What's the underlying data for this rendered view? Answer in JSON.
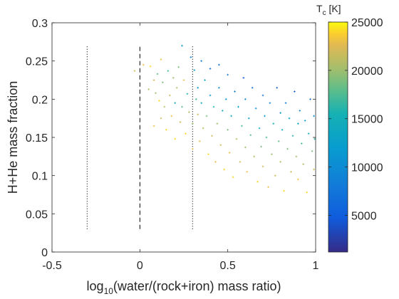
{
  "chart_data": {
    "type": "scatter",
    "xlabel": "log10(water/(rock+iron) mass ratio)",
    "ylabel": "H+He mass fraction",
    "colorbar_title": "Tc [K]",
    "xlim": [
      -0.5,
      1
    ],
    "ylim": [
      0,
      0.3
    ],
    "xticks": [
      -0.5,
      0,
      0.5,
      1
    ],
    "xtick_labels": [
      "-0.5",
      "0",
      "0.5",
      "1"
    ],
    "yticks": [
      0,
      0.05,
      0.1,
      0.15,
      0.2,
      0.25,
      0.3
    ],
    "ytick_labels": [
      "0",
      "0.05",
      "0.1",
      "0.15",
      "0.2",
      "0.25",
      "0.3"
    ],
    "clim": [
      1200,
      25000
    ],
    "cticks": [
      5000,
      10000,
      15000,
      20000,
      25000
    ],
    "ctick_labels": [
      "5000",
      "10000",
      "15000",
      "20000",
      "25000"
    ],
    "colormap": "parula",
    "grid": false,
    "reference_lines": [
      {
        "x": -0.3,
        "y_range": [
          0.03,
          0.27
        ],
        "style": "dotted"
      },
      {
        "x": 0.0,
        "y_range": [
          0.03,
          0.27
        ],
        "style": "dashed"
      },
      {
        "x": 0.3,
        "y_range": [
          0.03,
          0.27
        ],
        "style": "dotted"
      }
    ],
    "points": [
      [
        -0.03,
        0.237,
        22000
      ],
      [
        0.02,
        0.245,
        23000
      ],
      [
        0.05,
        0.213,
        21000
      ],
      [
        0.06,
        0.243,
        24000
      ],
      [
        0.08,
        0.225,
        22000
      ],
      [
        0.08,
        0.165,
        23000
      ],
      [
        0.09,
        0.208,
        20000
      ],
      [
        0.1,
        0.233,
        18000
      ],
      [
        0.11,
        0.198,
        24000
      ],
      [
        0.12,
        0.175,
        22000
      ],
      [
        0.12,
        0.252,
        23000
      ],
      [
        0.13,
        0.222,
        19000
      ],
      [
        0.14,
        0.19,
        21000
      ],
      [
        0.15,
        0.16,
        24000
      ],
      [
        0.16,
        0.237,
        17000
      ],
      [
        0.17,
        0.205,
        22000
      ],
      [
        0.18,
        0.178,
        23000
      ],
      [
        0.19,
        0.228,
        20000
      ],
      [
        0.2,
        0.148,
        24000
      ],
      [
        0.2,
        0.195,
        15000
      ],
      [
        0.21,
        0.215,
        21000
      ],
      [
        0.22,
        0.242,
        19000
      ],
      [
        0.23,
        0.17,
        22000
      ],
      [
        0.24,
        0.27,
        12000
      ],
      [
        0.24,
        0.19,
        18000
      ],
      [
        0.25,
        0.225,
        23000
      ],
      [
        0.26,
        0.155,
        24000
      ],
      [
        0.27,
        0.207,
        16000
      ],
      [
        0.28,
        0.183,
        21000
      ],
      [
        0.29,
        0.255,
        9000
      ],
      [
        0.3,
        0.135,
        23000
      ],
      [
        0.3,
        0.168,
        20000
      ],
      [
        0.31,
        0.238,
        13000
      ],
      [
        0.32,
        0.2,
        17000
      ],
      [
        0.33,
        0.215,
        11000
      ],
      [
        0.33,
        0.18,
        22000
      ],
      [
        0.34,
        0.145,
        23000
      ],
      [
        0.35,
        0.195,
        15000
      ],
      [
        0.35,
        0.25,
        8000
      ],
      [
        0.36,
        0.162,
        21000
      ],
      [
        0.37,
        0.225,
        14000
      ],
      [
        0.38,
        0.178,
        19000
      ],
      [
        0.39,
        0.128,
        24000
      ],
      [
        0.4,
        0.205,
        12000
      ],
      [
        0.4,
        0.24,
        7000
      ],
      [
        0.41,
        0.152,
        22000
      ],
      [
        0.42,
        0.19,
        16000
      ],
      [
        0.43,
        0.118,
        23000
      ],
      [
        0.44,
        0.168,
        20000
      ],
      [
        0.45,
        0.215,
        10000
      ],
      [
        0.45,
        0.245,
        6000
      ],
      [
        0.46,
        0.14,
        22000
      ],
      [
        0.47,
        0.185,
        15000
      ],
      [
        0.48,
        0.108,
        24000
      ],
      [
        0.49,
        0.2,
        11000
      ],
      [
        0.5,
        0.16,
        19000
      ],
      [
        0.5,
        0.232,
        8000
      ],
      [
        0.51,
        0.13,
        23000
      ],
      [
        0.52,
        0.178,
        14000
      ],
      [
        0.53,
        0.098,
        24000
      ],
      [
        0.54,
        0.21,
        9000
      ],
      [
        0.55,
        0.148,
        21000
      ],
      [
        0.56,
        0.19,
        12000
      ],
      [
        0.57,
        0.118,
        22000
      ],
      [
        0.58,
        0.165,
        17000
      ],
      [
        0.59,
        0.228,
        5000
      ],
      [
        0.6,
        0.137,
        20000
      ],
      [
        0.6,
        0.2,
        10000
      ],
      [
        0.61,
        0.105,
        23000
      ],
      [
        0.62,
        0.175,
        13000
      ],
      [
        0.63,
        0.153,
        18000
      ],
      [
        0.64,
        0.215,
        7000
      ],
      [
        0.65,
        0.125,
        21000
      ],
      [
        0.66,
        0.188,
        11000
      ],
      [
        0.67,
        0.092,
        24000
      ],
      [
        0.68,
        0.162,
        15000
      ],
      [
        0.69,
        0.138,
        19000
      ],
      [
        0.7,
        0.205,
        8000
      ],
      [
        0.7,
        0.112,
        22000
      ],
      [
        0.71,
        0.178,
        12000
      ],
      [
        0.72,
        0.15,
        17000
      ],
      [
        0.73,
        0.085,
        23000
      ],
      [
        0.74,
        0.195,
        9000
      ],
      [
        0.75,
        0.128,
        20000
      ],
      [
        0.76,
        0.168,
        14000
      ],
      [
        0.77,
        0.1,
        22000
      ],
      [
        0.78,
        0.215,
        6000
      ],
      [
        0.79,
        0.145,
        18000
      ],
      [
        0.8,
        0.182,
        11000
      ],
      [
        0.8,
        0.118,
        21000
      ],
      [
        0.81,
        0.16,
        15000
      ],
      [
        0.82,
        0.08,
        24000
      ],
      [
        0.83,
        0.195,
        8000
      ],
      [
        0.84,
        0.135,
        19000
      ],
      [
        0.85,
        0.175,
        12000
      ],
      [
        0.86,
        0.105,
        22000
      ],
      [
        0.87,
        0.152,
        16000
      ],
      [
        0.88,
        0.21,
        5000
      ],
      [
        0.89,
        0.125,
        20000
      ],
      [
        0.9,
        0.168,
        13000
      ],
      [
        0.9,
        0.095,
        23000
      ],
      [
        0.91,
        0.185,
        10000
      ],
      [
        0.92,
        0.142,
        17000
      ],
      [
        0.93,
        0.115,
        21000
      ],
      [
        0.94,
        0.172,
        12000
      ],
      [
        0.95,
        0.078,
        24000
      ],
      [
        0.96,
        0.155,
        15000
      ],
      [
        0.97,
        0.2,
        7000
      ],
      [
        0.98,
        0.132,
        19000
      ],
      [
        0.99,
        0.178,
        11000
      ],
      [
        0.99,
        0.108,
        22000
      ],
      [
        0.995,
        0.148,
        16000
      ]
    ]
  }
}
